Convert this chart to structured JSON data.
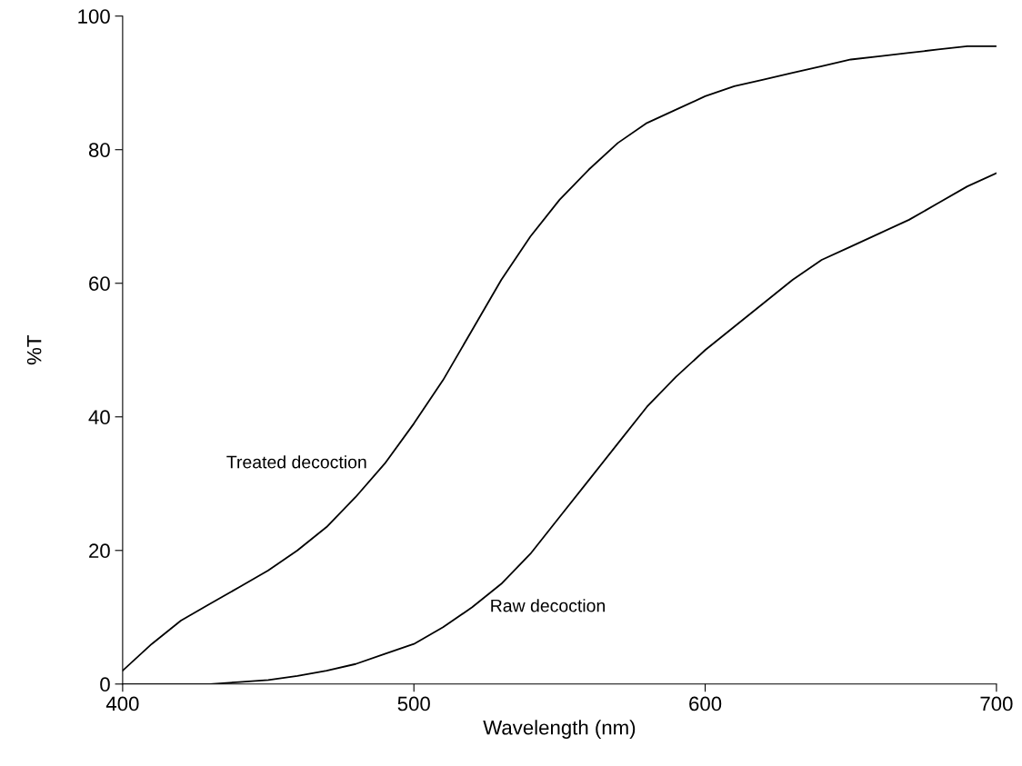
{
  "chart_data": {
    "type": "line",
    "xlabel": "Wavelength (nm)",
    "ylabel": "%T",
    "xlim": [
      400,
      700
    ],
    "ylim": [
      0,
      100
    ],
    "xticks": [
      400,
      500,
      600,
      700
    ],
    "yticks": [
      0,
      20,
      40,
      60,
      80,
      100
    ],
    "grid": false,
    "legend": false,
    "marker": "none",
    "line_style": "solid",
    "x": [
      400,
      410,
      420,
      430,
      440,
      450,
      460,
      470,
      480,
      490,
      500,
      510,
      520,
      530,
      540,
      550,
      560,
      570,
      580,
      590,
      600,
      610,
      620,
      630,
      640,
      650,
      660,
      670,
      680,
      690,
      700
    ],
    "series": [
      {
        "name": "Treated decoction",
        "color": "#000000",
        "values": [
          2,
          6,
          9.5,
          12,
          14.5,
          17,
          20,
          23.5,
          28,
          33,
          39,
          45.5,
          53,
          60.5,
          67,
          72.5,
          77,
          81,
          84,
          86,
          88,
          89.5,
          90.5,
          91.5,
          92.5,
          93.5,
          94,
          94.5,
          95,
          95.5,
          95.5
        ]
      },
      {
        "name": "Raw decoction",
        "color": "#000000",
        "values": [
          0,
          0,
          0,
          0,
          0.3,
          0.6,
          1.2,
          2,
          3,
          4.5,
          6,
          8.5,
          11.5,
          15,
          19.5,
          25,
          30.5,
          36,
          41.5,
          46,
          50,
          53.5,
          57,
          60.5,
          63.5,
          65.5,
          67.5,
          69.5,
          72,
          74.5,
          76.5
        ]
      }
    ]
  }
}
